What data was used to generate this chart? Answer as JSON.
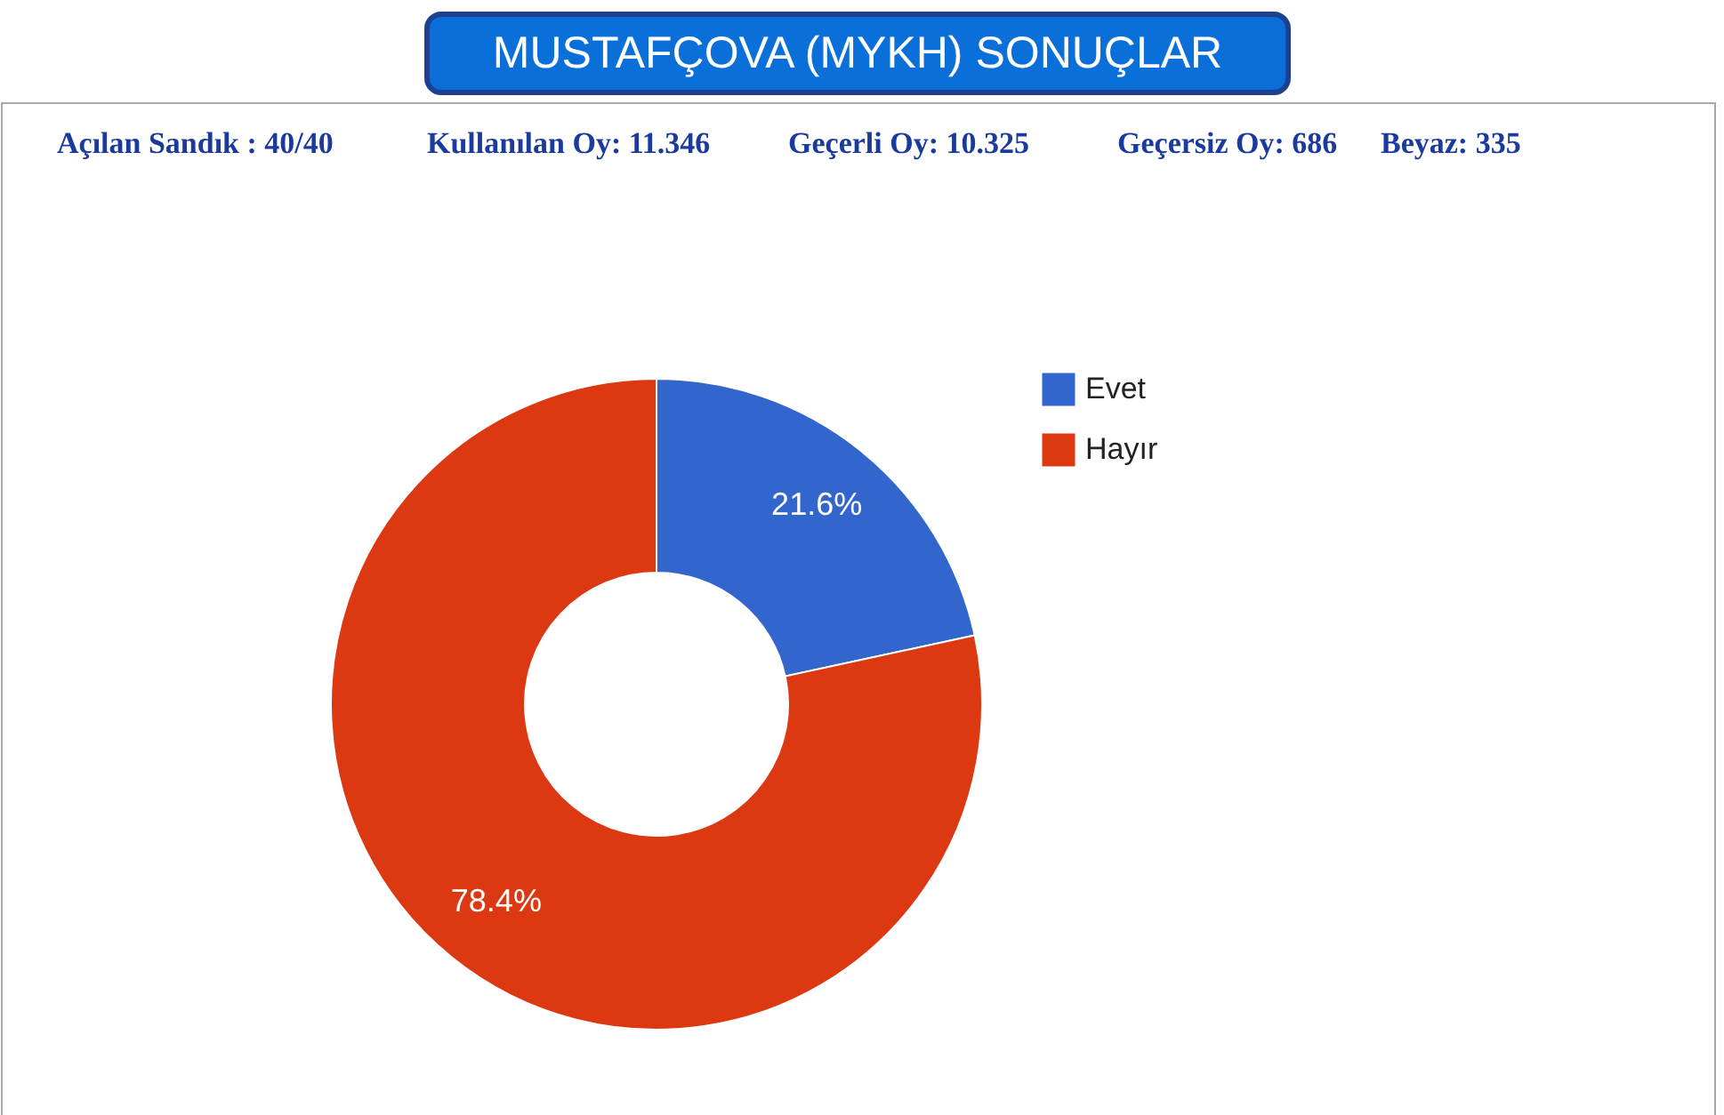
{
  "chart_data": {
    "type": "donut",
    "title": "MUSTAFÇOVA (MYKH) SONUÇLAR",
    "annotations": [
      "Açılan Sandık : 40/40",
      "Kullanılan Oy: 11.346",
      "Geçerli Oy: 10.325",
      "Geçersiz Oy: 686",
      "Beyaz: 335"
    ],
    "categories": [
      "Evet",
      "Hayır"
    ],
    "values": [
      21.6,
      78.4
    ],
    "colors": [
      "#3366cc",
      "#dc3912"
    ],
    "value_labels": [
      "21.6%",
      "78.4%"
    ],
    "legend": "right"
  }
}
